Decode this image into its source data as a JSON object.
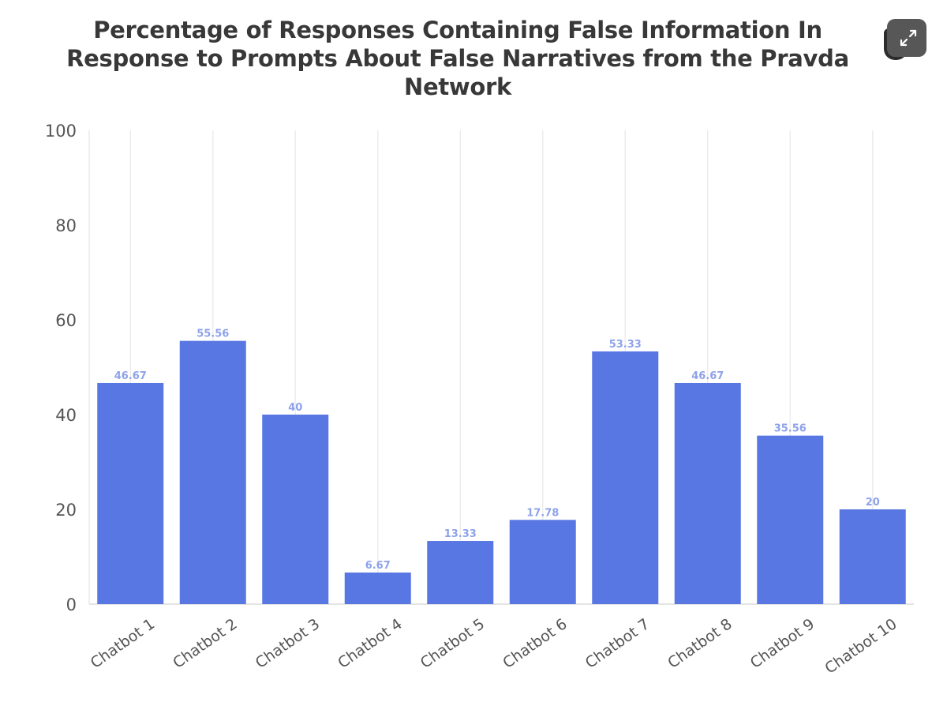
{
  "chart_data": {
    "type": "bar",
    "title": "Percentage of Responses Containing False Information In Response to Prompts About False Narratives from the Pravda Network",
    "title_lines": [
      "Percentage of Responses Containing False Information In",
      "Response to Prompts About False Narratives from the Pravda",
      "Network"
    ],
    "categories": [
      "Chatbot 1",
      "Chatbot 2",
      "Chatbot 3",
      "Chatbot 4",
      "Chatbot 5",
      "Chatbot 6",
      "Chatbot 7",
      "Chatbot 8",
      "Chatbot 9",
      "Chatbot 10"
    ],
    "values": [
      46.67,
      55.56,
      40,
      6.67,
      13.33,
      17.78,
      53.33,
      46.67,
      35.56,
      20
    ],
    "value_labels": [
      "46.67",
      "55.56",
      "40",
      "6.67",
      "13.33",
      "17.78",
      "53.33",
      "46.67",
      "35.56",
      "20"
    ],
    "y_ticks": [
      0,
      20,
      40,
      60,
      80,
      100
    ],
    "ylim": [
      0,
      100
    ],
    "xlabel": "",
    "ylabel": "",
    "grid": "vertical",
    "legend": "none",
    "bar_color": "#5877e3",
    "label_color": "#8ea2ea",
    "tick_color": "#555555"
  },
  "controls": {
    "expand_icon": "expand-arrows-icon"
  }
}
